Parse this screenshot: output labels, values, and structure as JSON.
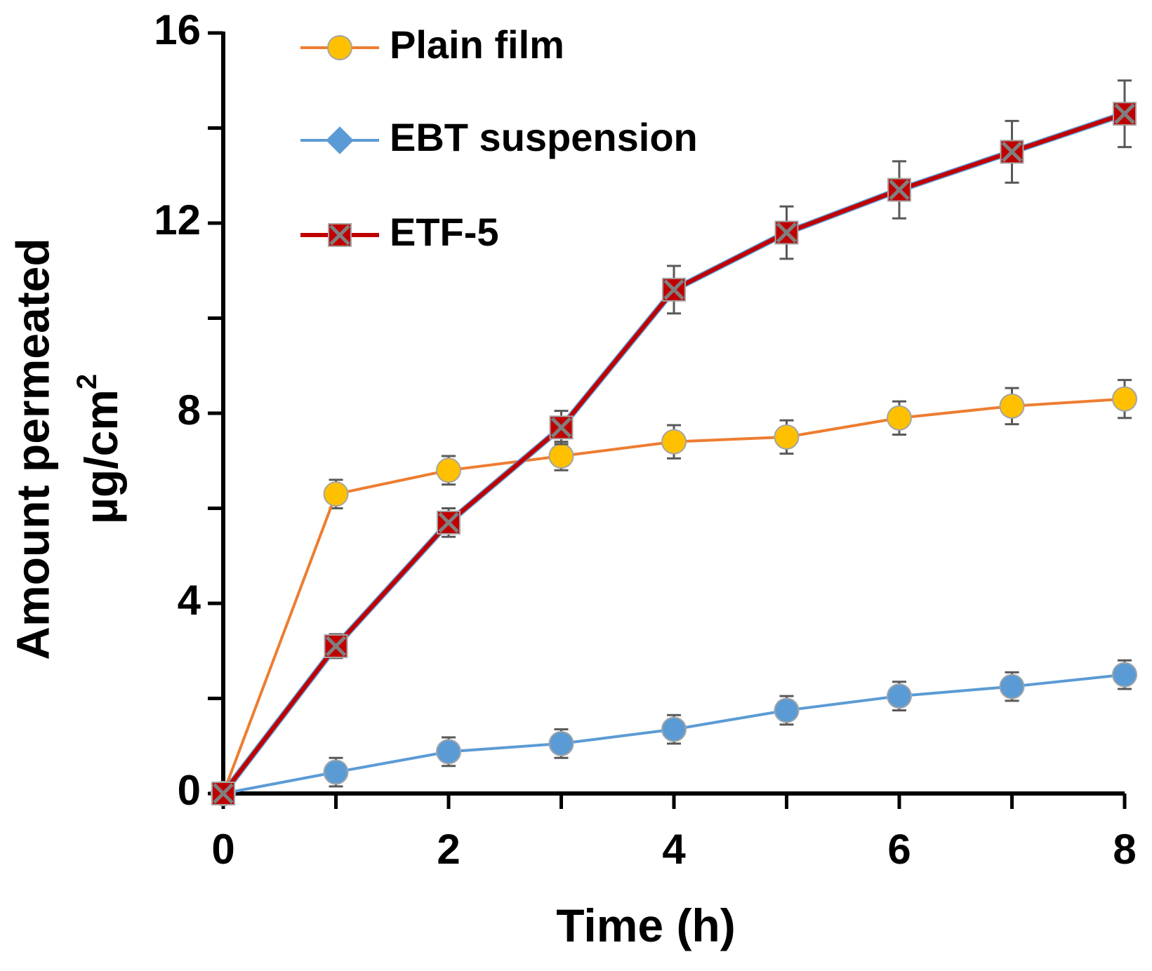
{
  "chart_data": {
    "type": "line",
    "title": "",
    "xlabel": "Time (h)",
    "ylabel_line1": "Amount permeated",
    "ylabel_line2": "µg/cm",
    "ylabel_superscript": "2",
    "xlim": [
      0,
      8
    ],
    "ylim": [
      0,
      16
    ],
    "x_ticks": [
      "0",
      "2",
      "4",
      "6",
      "8"
    ],
    "y_ticks": [
      "0",
      "4",
      "8",
      "12",
      "16"
    ],
    "grid": false,
    "legend_position": "top-left",
    "x": [
      0,
      1,
      2,
      3,
      4,
      5,
      6,
      7,
      8
    ],
    "series": [
      {
        "name": "Plain film",
        "marker": "circle",
        "line_color": "#ED7D31",
        "marker_color": "#FFC000",
        "values": [
          0,
          6.3,
          6.8,
          7.1,
          7.4,
          7.5,
          7.9,
          8.15,
          8.3
        ],
        "errors": [
          0,
          0.3,
          0.3,
          0.3,
          0.35,
          0.35,
          0.35,
          0.38,
          0.4
        ]
      },
      {
        "name": "EBT suspension",
        "marker": "circle",
        "line_color": "#5B9BD5",
        "marker_color": "#5B9BD5",
        "values": [
          0,
          0.45,
          0.88,
          1.05,
          1.35,
          1.75,
          2.05,
          2.25,
          2.5
        ],
        "errors": [
          0,
          0.3,
          0.3,
          0.3,
          0.3,
          0.3,
          0.3,
          0.3,
          0.3
        ]
      },
      {
        "name": "ETF-5",
        "marker": "x-square",
        "line_color": "#C00000",
        "marker_color": "#C00000",
        "values": [
          0,
          3.1,
          5.7,
          7.7,
          10.6,
          11.8,
          12.7,
          13.5,
          14.3
        ],
        "errors": [
          0,
          0.25,
          0.3,
          0.35,
          0.5,
          0.55,
          0.6,
          0.65,
          0.7
        ]
      }
    ]
  }
}
